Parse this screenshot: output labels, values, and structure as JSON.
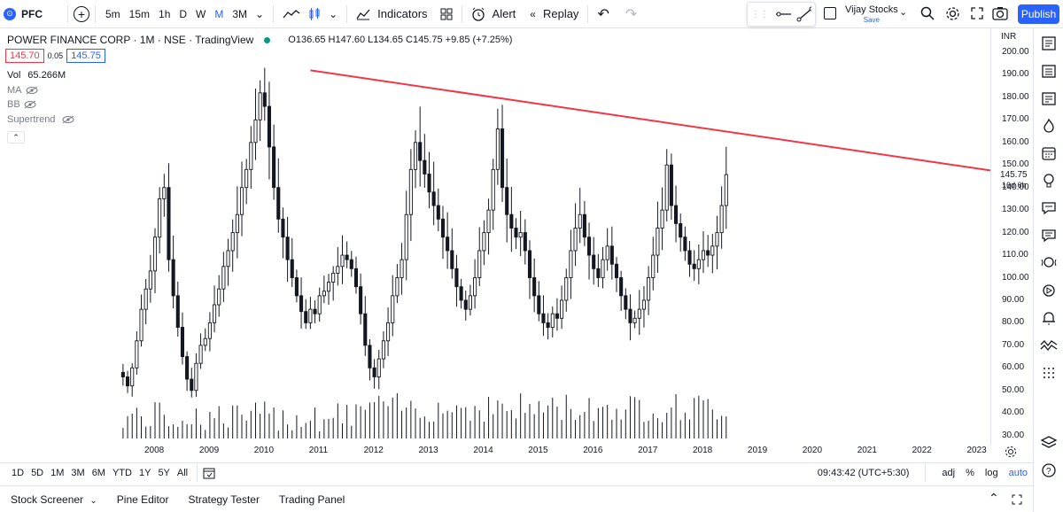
{
  "header": {
    "symbol_logo": "⊙",
    "symbol": "PFC",
    "timeframes": [
      "5m",
      "15m",
      "1h",
      "D",
      "W",
      "M",
      "3M"
    ],
    "active_timeframe": "M",
    "indicators_label": "Indicators",
    "alert_label": "Alert",
    "replay_label": "Replay",
    "user_name": "Vijay Stocks",
    "save_label": "Save",
    "publish_label": "Publish"
  },
  "legend": {
    "title": "POWER FINANCE CORP · 1M · NSE · TradingView",
    "ohlc": "O136.65 H147.60 L134.65 C145.75 +9.85 (+7.25%)",
    "bid": "145.70",
    "spread": "0.05",
    "ask": "145.75",
    "vol_label": "Vol",
    "vol_value": "65.266M",
    "indicators": [
      "MA",
      "BB",
      "Supertrend"
    ]
  },
  "price_axis": {
    "currency": "INR",
    "ticks": [
      "200.00",
      "190.00",
      "180.00",
      "170.00",
      "160.00",
      "150.00",
      "140.00",
      "130.00",
      "120.00",
      "110.00",
      "100.00",
      "90.00",
      "80.00",
      "70.00",
      "60.00",
      "50.00",
      "40.00",
      "30.00"
    ],
    "last_price": "145.75",
    "countdown": "16d 6h"
  },
  "time_axis": {
    "ticks": [
      "2008",
      "2009",
      "2010",
      "2011",
      "2012",
      "2013",
      "2014",
      "2015",
      "2016",
      "2017",
      "2018",
      "2019",
      "2020",
      "2021",
      "2022",
      "2023"
    ]
  },
  "range_bar": {
    "ranges": [
      "1D",
      "5D",
      "1M",
      "3M",
      "6M",
      "YTD",
      "1Y",
      "5Y",
      "All"
    ],
    "time": "09:43:42 (UTC+5:30)",
    "adj": "adj",
    "percent": "%",
    "log": "log",
    "auto": "auto"
  },
  "panel_bar": {
    "tabs": [
      "Stock Screener",
      "Pine Editor",
      "Strategy Tester",
      "Trading Panel"
    ]
  },
  "colors": {
    "accent": "#2962ff",
    "trendline": "#f23645",
    "candle": "#131722"
  },
  "chart_data": {
    "type": "candlestick",
    "interval": "1M",
    "ylim": [
      30,
      200
    ],
    "trendline": {
      "from": {
        "date": "2010-11",
        "price": 192
      },
      "to": {
        "date": "2023-01",
        "price": 147.6
      }
    },
    "close": [
      56,
      52,
      60,
      72,
      86,
      95,
      103,
      118,
      135,
      140,
      108,
      92,
      78,
      65,
      55,
      50,
      62,
      70,
      73,
      80,
      88,
      95,
      105,
      112,
      120,
      128,
      140,
      148,
      160,
      170,
      182,
      176,
      158,
      140,
      126,
      118,
      108,
      100,
      92,
      85,
      80,
      86,
      84,
      92,
      94,
      98,
      102,
      105,
      110,
      108,
      104,
      96,
      84,
      70,
      60,
      56,
      64,
      72,
      80,
      92,
      100,
      108,
      128,
      148,
      160,
      152,
      146,
      138,
      132,
      126,
      118,
      112,
      104,
      96,
      90,
      86,
      92,
      100,
      112,
      120,
      130,
      148,
      166,
      140,
      128,
      122,
      118,
      120,
      112,
      100,
      92,
      84,
      80,
      78,
      84,
      82,
      90,
      100,
      112,
      122,
      128,
      118,
      110,
      104,
      100,
      108,
      114,
      106,
      100,
      92,
      86,
      80,
      82,
      86,
      90,
      100,
      110,
      122,
      130,
      150,
      132,
      124,
      118,
      112,
      106,
      104,
      108,
      112,
      110,
      114,
      120,
      132,
      145.75
    ]
  }
}
